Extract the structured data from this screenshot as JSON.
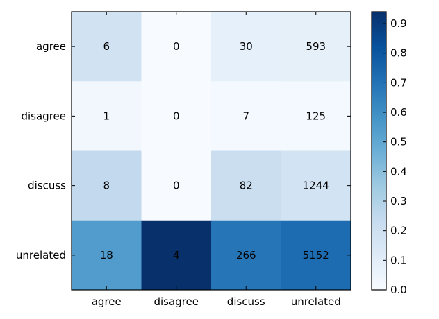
{
  "chart_data": {
    "type": "heatmap",
    "row_labels": [
      "agree",
      "disagree",
      "discuss",
      "unrelated"
    ],
    "col_labels": [
      "agree",
      "disagree",
      "discuss",
      "unrelated"
    ],
    "values": [
      [
        6,
        0,
        30,
        593
      ],
      [
        1,
        0,
        7,
        125
      ],
      [
        8,
        0,
        82,
        1244
      ],
      [
        18,
        4,
        266,
        5152
      ]
    ],
    "colorbar": {
      "min": 0.0,
      "max": 0.94,
      "ticks": [
        "0.0",
        "0.1",
        "0.2",
        "0.3",
        "0.4",
        "0.5",
        "0.6",
        "0.7",
        "0.8",
        "0.9"
      ]
    },
    "colormap": "Blues",
    "colors": {
      "low": "#f7fbff",
      "high": "#08306b",
      "frame": "#000000"
    }
  }
}
